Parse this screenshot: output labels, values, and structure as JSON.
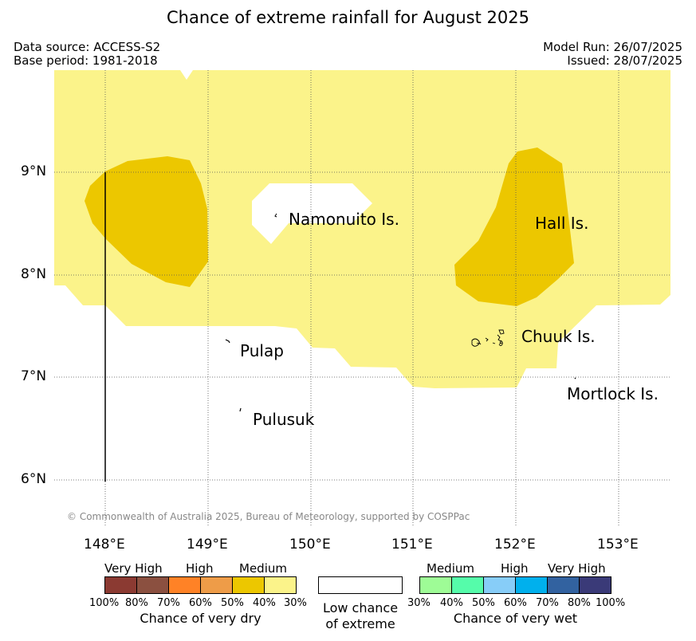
{
  "title": "Chance of extreme rainfall for August 2025",
  "meta": {
    "data_source": "Data source: ACCESS-S2",
    "base_period": "Base period: 1981-2018",
    "model_run": "Model Run: 26/07/2025",
    "issued": "Issued: 28/07/2025"
  },
  "axes": {
    "lat_labels": [
      "9°N",
      "8°N",
      "7°N",
      "6°N"
    ],
    "lon_labels": [
      "148°E",
      "149°E",
      "150°E",
      "151°E",
      "152°E",
      "153°E"
    ]
  },
  "places": {
    "namonuito": "Namonuito Is.",
    "hall": "Hall Is.",
    "chuuk": "Chuuk Is.",
    "pulap": "Pulap",
    "mortlock": "Mortlock Is.",
    "pulusuk": "Pulusuk"
  },
  "copyright": "© Commonwealth of Australia 2025, Bureau of Meteorology, supported by COSPPac",
  "legend": {
    "dry": {
      "labels": {
        "very_high": "Very High",
        "high": "High",
        "medium": "Medium"
      },
      "colors": [
        "#8b3a32",
        "#8b5040",
        "#ff8226",
        "#ee9c48",
        "#ecc700",
        "#fbf38a"
      ],
      "percents": [
        "100%",
        "80%",
        "70%",
        "60%",
        "50%",
        "40%",
        "30%"
      ],
      "caption": "Chance of very dry"
    },
    "low": {
      "line1": "Low chance",
      "line2": "of extreme"
    },
    "wet": {
      "labels": {
        "medium": "Medium",
        "high": "High",
        "very_high": "Very High"
      },
      "colors": [
        "#9efc96",
        "#55fcaa",
        "#87cdf8",
        "#00b0ed",
        "#3262a0",
        "#3a3a78"
      ],
      "percents": [
        "30%",
        "40%",
        "50%",
        "60%",
        "70%",
        "80%",
        "100%"
      ],
      "caption": "Chance of very wet"
    }
  },
  "map_colors": {
    "medium_light": "#fbf38a",
    "medium_dark": "#ecc700"
  }
}
